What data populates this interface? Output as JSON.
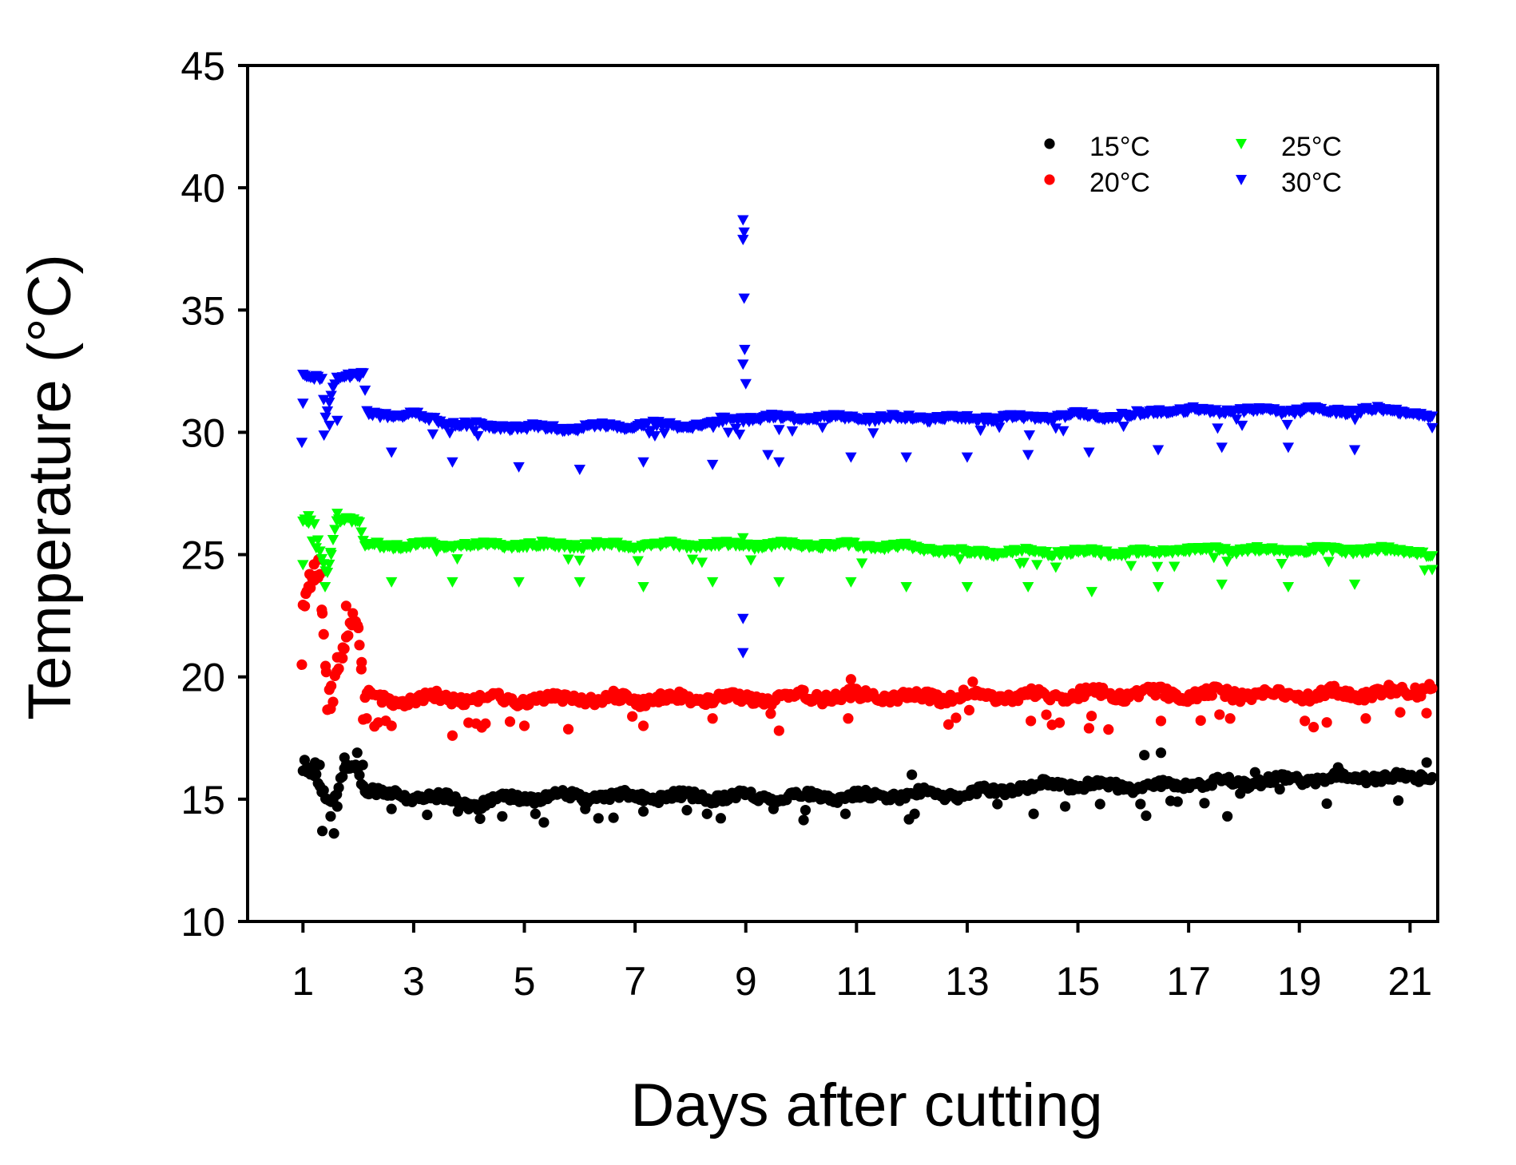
{
  "chart_data": {
    "type": "scatter",
    "title": "",
    "xlabel": "Days after cutting",
    "ylabel": "Temperature (°C)",
    "xlim": [
      0,
      21.5
    ],
    "ylim": [
      10,
      45
    ],
    "xticks": [
      1,
      3,
      5,
      7,
      9,
      11,
      13,
      15,
      17,
      19,
      21
    ],
    "yticks": [
      10,
      15,
      20,
      25,
      30,
      35,
      40,
      45
    ],
    "legend_position": "top-right",
    "grid": false,
    "series": [
      {
        "name": "15°C",
        "color": "#000000",
        "marker": "circle",
        "baseline": [
          [
            1.0,
            16.3
          ],
          [
            1.2,
            16.0
          ],
          [
            1.35,
            15.2
          ],
          [
            1.55,
            14.8
          ],
          [
            1.75,
            16.4
          ],
          [
            2.0,
            16.4
          ],
          [
            2.1,
            15.3
          ],
          [
            2.5,
            15.2
          ],
          [
            3.0,
            15.1
          ],
          [
            3.7,
            15.0
          ],
          [
            4.0,
            14.8
          ],
          [
            4.5,
            14.9
          ],
          [
            5.0,
            15.1
          ],
          [
            6.0,
            15.1
          ],
          [
            7.0,
            15.1
          ],
          [
            8.0,
            15.1
          ],
          [
            9.0,
            15.1
          ],
          [
            10.0,
            15.1
          ],
          [
            11.0,
            15.1
          ],
          [
            12.0,
            15.2
          ],
          [
            13.0,
            15.2
          ],
          [
            14.0,
            15.5
          ],
          [
            15.0,
            15.6
          ],
          [
            16.0,
            15.5
          ],
          [
            17.0,
            15.6
          ],
          [
            18.0,
            15.7
          ],
          [
            19.0,
            15.8
          ],
          [
            20.0,
            15.9
          ],
          [
            21.0,
            15.9
          ],
          [
            21.4,
            15.9
          ]
        ],
        "spread": 0.25,
        "outliers": [
          [
            1.03,
            16.6
          ],
          [
            1.08,
            16.1
          ],
          [
            1.15,
            16.3
          ],
          [
            1.22,
            16.5
          ],
          [
            1.3,
            16.4
          ],
          [
            1.35,
            13.7
          ],
          [
            1.42,
            15.0
          ],
          [
            1.5,
            14.3
          ],
          [
            1.56,
            13.6
          ],
          [
            1.62,
            14.7
          ],
          [
            1.75,
            16.7
          ],
          [
            1.88,
            16.3
          ],
          [
            1.98,
            16.9
          ],
          [
            2.08,
            16.4
          ],
          [
            2.6,
            14.6
          ],
          [
            3.3,
            15.2
          ],
          [
            3.8,
            14.5
          ],
          [
            4.2,
            14.2
          ],
          [
            4.6,
            14.3
          ],
          [
            5.2,
            14.4
          ],
          [
            6.1,
            14.6
          ],
          [
            7.15,
            14.5
          ],
          [
            8.3,
            14.4
          ],
          [
            9.5,
            14.6
          ],
          [
            10.8,
            14.4
          ],
          [
            12.0,
            16.0
          ],
          [
            12.05,
            14.4
          ],
          [
            14.2,
            14.4
          ],
          [
            15.4,
            14.8
          ],
          [
            16.2,
            16.8
          ],
          [
            16.5,
            16.9
          ],
          [
            16.8,
            14.9
          ],
          [
            17.7,
            14.3
          ],
          [
            18.2,
            16.1
          ],
          [
            19.7,
            16.3
          ],
          [
            21.3,
            16.5
          ]
        ]
      },
      {
        "name": "20°C",
        "color": "#ff0000",
        "marker": "circle",
        "baseline": [
          [
            1.0,
            22.8
          ],
          [
            1.15,
            23.7
          ],
          [
            1.3,
            24.2
          ],
          [
            1.45,
            19.1
          ],
          [
            1.7,
            20.9
          ],
          [
            1.85,
            22.3
          ],
          [
            2.0,
            22.2
          ],
          [
            2.08,
            19.2
          ],
          [
            2.5,
            19.0
          ],
          [
            3.0,
            19.1
          ],
          [
            4.0,
            19.1
          ],
          [
            5.0,
            19.1
          ],
          [
            6.0,
            19.1
          ],
          [
            7.0,
            19.1
          ],
          [
            8.0,
            19.1
          ],
          [
            9.0,
            19.1
          ],
          [
            10.0,
            19.2
          ],
          [
            11.0,
            19.2
          ],
          [
            12.0,
            19.2
          ],
          [
            13.0,
            19.2
          ],
          [
            14.0,
            19.2
          ],
          [
            15.0,
            19.3
          ],
          [
            16.0,
            19.3
          ],
          [
            17.0,
            19.3
          ],
          [
            18.0,
            19.3
          ],
          [
            19.0,
            19.3
          ],
          [
            20.0,
            19.3
          ],
          [
            21.0,
            19.4
          ],
          [
            21.4,
            19.6
          ]
        ],
        "spread": 0.3,
        "outliers": [
          [
            0.98,
            20.5
          ],
          [
            1.05,
            23.4
          ],
          [
            1.12,
            24.2
          ],
          [
            1.2,
            24.6
          ],
          [
            1.28,
            24.8
          ],
          [
            1.35,
            22.6
          ],
          [
            1.42,
            20.2
          ],
          [
            1.5,
            18.7
          ],
          [
            1.62,
            20.8
          ],
          [
            1.72,
            21.2
          ],
          [
            1.78,
            22.9
          ],
          [
            1.9,
            22.6
          ],
          [
            2.0,
            22.0
          ],
          [
            2.06,
            20.6
          ],
          [
            2.15,
            18.3
          ],
          [
            2.6,
            18.0
          ],
          [
            3.7,
            17.6
          ],
          [
            5.0,
            18.0
          ],
          [
            7.15,
            18.0
          ],
          [
            8.4,
            18.3
          ],
          [
            9.45,
            18.5
          ],
          [
            9.6,
            17.8
          ],
          [
            10.9,
            19.9
          ],
          [
            10.85,
            18.3
          ],
          [
            13.1,
            19.8
          ],
          [
            14.15,
            18.2
          ],
          [
            15.2,
            17.9
          ],
          [
            16.5,
            18.2
          ],
          [
            17.75,
            18.3
          ],
          [
            19.1,
            18.2
          ],
          [
            20.2,
            18.3
          ],
          [
            21.35,
            19.7
          ]
        ]
      },
      {
        "name": "25°C",
        "color": "#00ff00",
        "marker": "triangle-down",
        "baseline": [
          [
            1.0,
            26.4
          ],
          [
            1.2,
            26.2
          ],
          [
            1.35,
            24.8
          ],
          [
            1.45,
            24.2
          ],
          [
            1.6,
            26.5
          ],
          [
            2.0,
            26.4
          ],
          [
            2.1,
            25.4
          ],
          [
            3.0,
            25.4
          ],
          [
            4.0,
            25.4
          ],
          [
            5.0,
            25.4
          ],
          [
            6.0,
            25.4
          ],
          [
            7.0,
            25.4
          ],
          [
            8.0,
            25.4
          ],
          [
            9.0,
            25.4
          ],
          [
            10.0,
            25.4
          ],
          [
            11.0,
            25.4
          ],
          [
            12.0,
            25.3
          ],
          [
            13.0,
            25.1
          ],
          [
            14.0,
            25.1
          ],
          [
            15.0,
            25.1
          ],
          [
            16.0,
            25.1
          ],
          [
            17.0,
            25.2
          ],
          [
            18.0,
            25.2
          ],
          [
            19.0,
            25.2
          ],
          [
            20.0,
            25.2
          ],
          [
            21.0,
            25.2
          ],
          [
            21.4,
            25.0
          ]
        ],
        "spread": 0.15,
        "outliers": [
          [
            1.0,
            24.6
          ],
          [
            1.1,
            26.6
          ],
          [
            1.4,
            23.7
          ],
          [
            1.5,
            25.1
          ],
          [
            1.62,
            26.7
          ],
          [
            2.6,
            23.9
          ],
          [
            3.7,
            23.9
          ],
          [
            4.9,
            23.9
          ],
          [
            6.0,
            23.9
          ],
          [
            7.15,
            23.7
          ],
          [
            8.4,
            23.9
          ],
          [
            8.95,
            25.7
          ],
          [
            9.6,
            23.9
          ],
          [
            10.9,
            23.9
          ],
          [
            11.9,
            23.7
          ],
          [
            13.0,
            23.7
          ],
          [
            14.1,
            23.7
          ],
          [
            15.25,
            23.5
          ],
          [
            16.45,
            23.7
          ],
          [
            17.6,
            23.8
          ],
          [
            18.8,
            23.7
          ],
          [
            20.0,
            23.8
          ],
          [
            21.4,
            24.4
          ]
        ]
      },
      {
        "name": "30°C",
        "color": "#0000ff",
        "marker": "triangle-down",
        "baseline": [
          [
            1.0,
            32.3
          ],
          [
            1.2,
            32.3
          ],
          [
            1.35,
            32.3
          ],
          [
            1.4,
            30.6
          ],
          [
            1.6,
            32.3
          ],
          [
            2.1,
            32.3
          ],
          [
            2.15,
            30.8
          ],
          [
            3.0,
            30.7
          ],
          [
            3.7,
            30.4
          ],
          [
            4.0,
            30.3
          ],
          [
            5.0,
            30.2
          ],
          [
            6.0,
            30.2
          ],
          [
            7.0,
            30.3
          ],
          [
            8.0,
            30.3
          ],
          [
            9.0,
            30.6
          ],
          [
            10.0,
            30.6
          ],
          [
            11.0,
            30.6
          ],
          [
            12.0,
            30.6
          ],
          [
            13.0,
            30.6
          ],
          [
            14.0,
            30.6
          ],
          [
            15.0,
            30.7
          ],
          [
            16.0,
            30.7
          ],
          [
            16.5,
            30.9
          ],
          [
            17.0,
            30.9
          ],
          [
            18.0,
            30.9
          ],
          [
            19.0,
            30.9
          ],
          [
            20.0,
            30.9
          ],
          [
            21.0,
            30.9
          ],
          [
            21.4,
            30.6
          ]
        ],
        "spread": 0.15,
        "outliers": [
          [
            0.98,
            29.6
          ],
          [
            1.0,
            31.2
          ],
          [
            1.38,
            29.9
          ],
          [
            1.48,
            30.3
          ],
          [
            1.62,
            30.5
          ],
          [
            2.6,
            29.2
          ],
          [
            3.7,
            28.8
          ],
          [
            4.9,
            28.6
          ],
          [
            6.0,
            28.5
          ],
          [
            7.15,
            28.8
          ],
          [
            8.4,
            28.7
          ],
          [
            9.4,
            29.1
          ],
          [
            9.6,
            28.8
          ],
          [
            10.9,
            29.0
          ],
          [
            11.9,
            29.0
          ],
          [
            13.0,
            29.0
          ],
          [
            14.1,
            29.1
          ],
          [
            15.2,
            29.2
          ],
          [
            16.45,
            29.3
          ],
          [
            17.6,
            29.4
          ],
          [
            18.8,
            29.4
          ],
          [
            20.0,
            29.3
          ],
          [
            21.4,
            30.2
          ],
          [
            8.95,
            38.7
          ],
          [
            8.97,
            38.2
          ],
          [
            8.95,
            37.9
          ],
          [
            8.97,
            35.5
          ],
          [
            8.98,
            33.4
          ],
          [
            8.95,
            32.8
          ],
          [
            9.0,
            32.0
          ],
          [
            8.95,
            22.4
          ],
          [
            8.95,
            21.0
          ]
        ]
      }
    ]
  }
}
